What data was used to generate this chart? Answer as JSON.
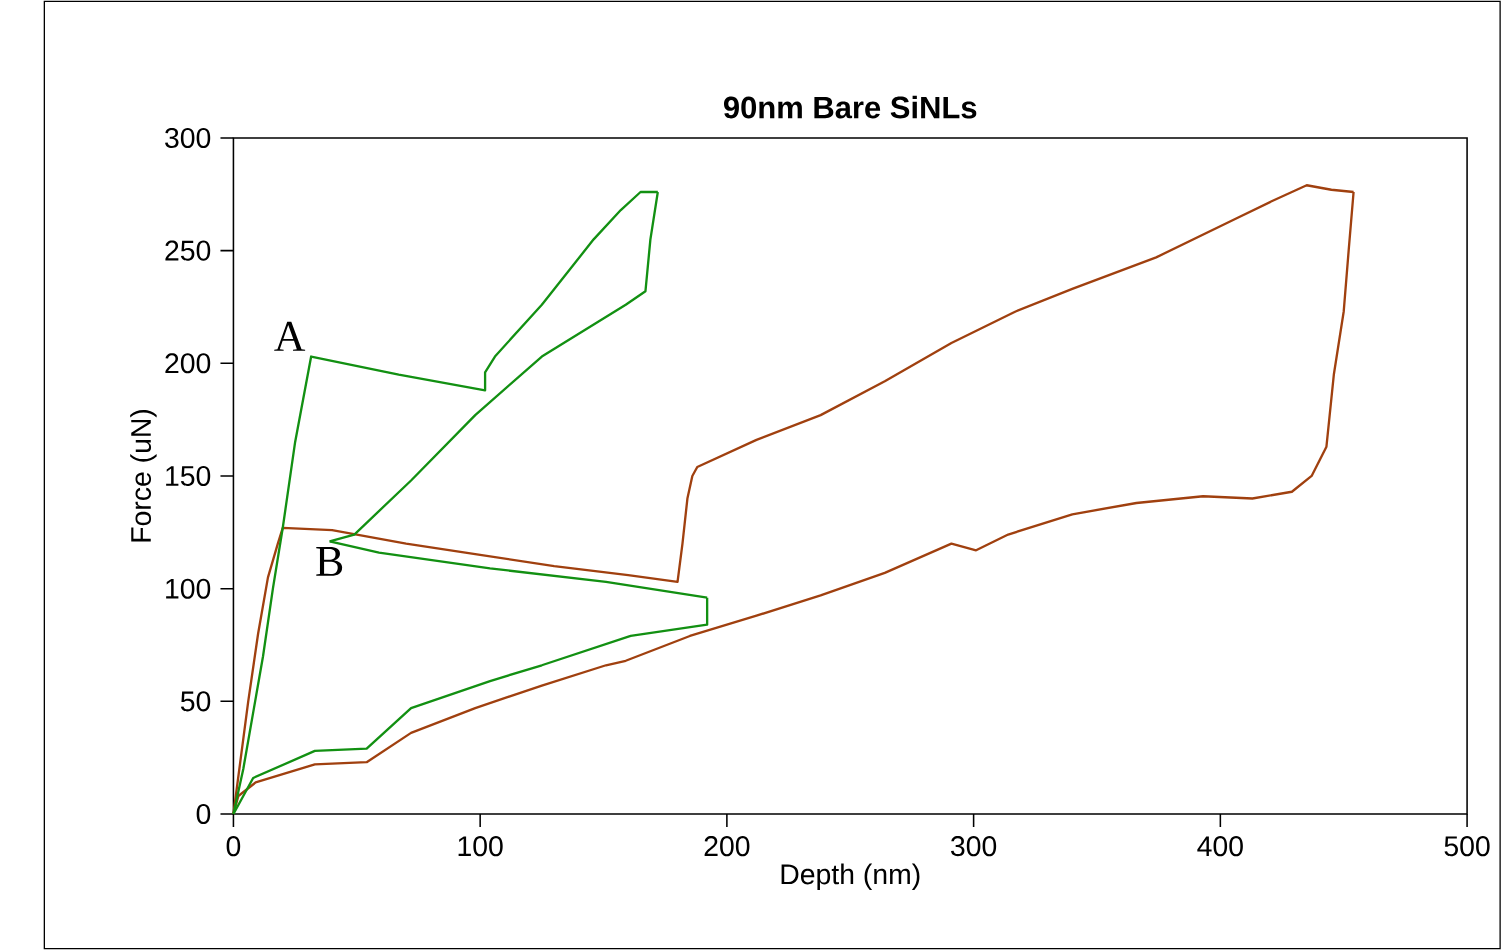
{
  "chart_data": {
    "type": "line",
    "title": "90nm Bare SiNLs",
    "xlabel": "Depth (nm)",
    "ylabel": "Force (uN)",
    "xlim": [
      0,
      500
    ],
    "ylim": [
      0,
      300
    ],
    "xticks": [
      0,
      100,
      200,
      300,
      400,
      500
    ],
    "yticks": [
      0,
      50,
      100,
      150,
      200,
      250,
      300
    ],
    "grid": false,
    "marker": "none",
    "line_style": "solid",
    "series": [
      {
        "color": "#a0400f",
        "x": [
          0,
          3,
          6,
          10,
          14,
          18,
          20,
          40,
          70,
          100,
          130,
          160,
          180,
          182,
          184,
          186,
          188,
          212,
          238,
          264,
          291,
          317,
          340,
          374,
          406,
          421,
          435,
          445,
          454
        ],
        "values": [
          0,
          25,
          50,
          80,
          105,
          120,
          127,
          126,
          120,
          115,
          110,
          106,
          103,
          120,
          140,
          150,
          154,
          166,
          177,
          192,
          209,
          223,
          233,
          247,
          264,
          272,
          279,
          277,
          276
        ]
      },
      {
        "color": "#a0400f",
        "x": [
          0,
          2,
          9,
          33,
          54,
          72,
          98,
          125,
          151,
          159,
          185,
          212,
          238,
          264,
          291,
          301,
          314,
          340,
          366,
          393,
          413,
          429,
          437,
          443,
          446,
          450,
          452,
          454
        ],
        "values": [
          0,
          8,
          14,
          22,
          23,
          36,
          47,
          57,
          66,
          68,
          79,
          88,
          97,
          107,
          120,
          117,
          124,
          133,
          138,
          141,
          140,
          143,
          150,
          163,
          195,
          223,
          250,
          276
        ]
      },
      {
        "color": "#129012",
        "x": [
          0,
          4,
          8,
          12,
          16,
          20,
          25,
          31.5,
          67,
          102,
          102,
          106,
          125,
          146,
          157,
          165,
          172
        ],
        "values": [
          0,
          20,
          45,
          70,
          100,
          127,
          165,
          203,
          195,
          188,
          196,
          203,
          226,
          255,
          268,
          276,
          276
        ]
      },
      {
        "color": "#129012",
        "x": [
          39,
          49,
          72,
          98,
          125,
          159,
          167,
          169,
          172
        ],
        "values": [
          121,
          124,
          148,
          177,
          203,
          226,
          232,
          255,
          276
        ]
      },
      {
        "color": "#129012",
        "x": [
          39,
          59,
          104,
          151,
          192
        ],
        "values": [
          121,
          116,
          109,
          103,
          96
        ]
      },
      {
        "color": "#129012",
        "x": [
          0,
          8,
          33,
          54,
          72,
          104,
          125,
          161,
          192,
          192
        ],
        "values": [
          0,
          16,
          28,
          29,
          47,
          59,
          66,
          79,
          84,
          96
        ]
      }
    ],
    "annotations": [
      {
        "text": "A",
        "x": 31.5,
        "y": 203
      },
      {
        "text": "B",
        "x": 39,
        "y": 121
      }
    ]
  }
}
